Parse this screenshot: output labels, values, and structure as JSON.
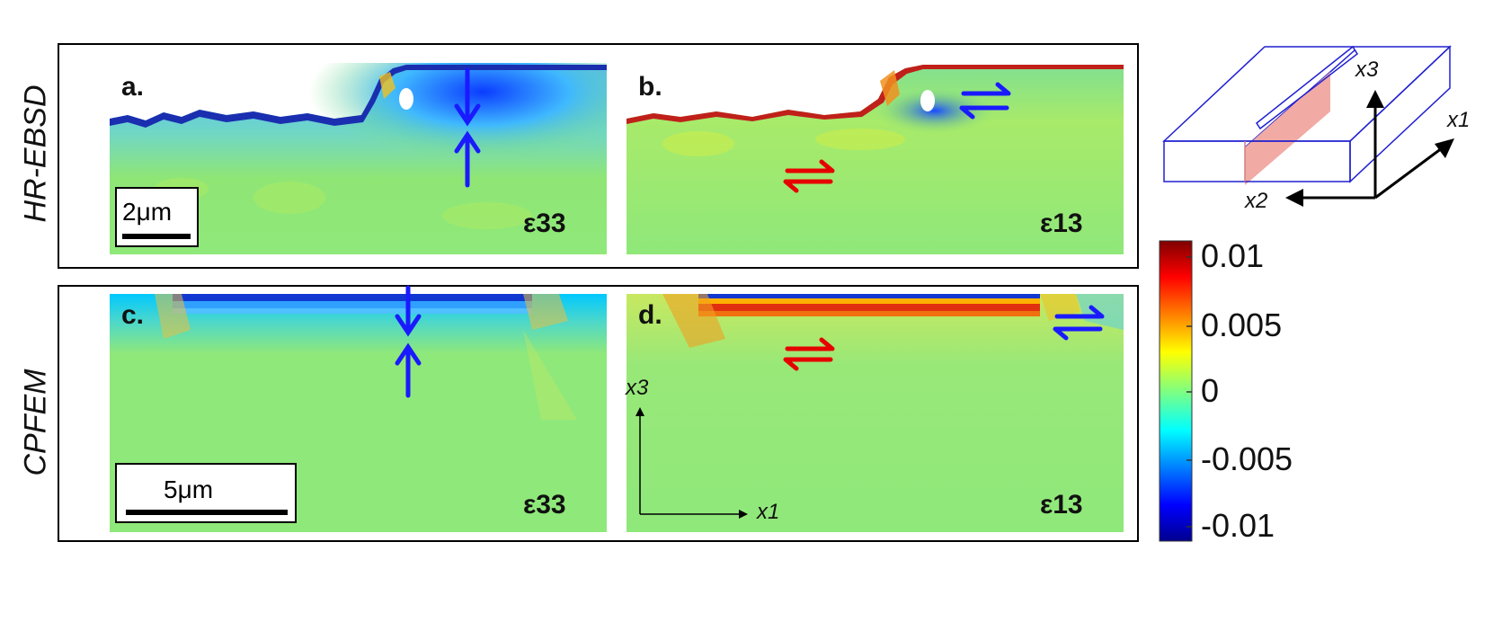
{
  "rows": [
    {
      "label": "HR-EBSD"
    },
    {
      "label": "CPFEM"
    }
  ],
  "panels": [
    {
      "id": "a.",
      "strain": "ε33"
    },
    {
      "id": "b.",
      "strain": "ε13"
    },
    {
      "id": "c.",
      "strain": "ε33"
    },
    {
      "id": "d.",
      "strain": "ε13"
    }
  ],
  "scalebars": {
    "top": "2μm",
    "bottom": "5μm"
  },
  "axes_inset": {
    "x": "x1",
    "z": "x3"
  },
  "schematic": {
    "x1": "x1",
    "x2": "x2",
    "x3": "x3"
  },
  "colorbar": {
    "ticks": [
      "0.01",
      "0.005",
      "0",
      "-0.005",
      "-0.01"
    ],
    "colors": [
      "#7f0000",
      "#ff0000",
      "#ffff00",
      "#00ffff",
      "#0000ff",
      "#00008f"
    ]
  },
  "arrow_colors": {
    "compression": "#1a1aff",
    "shear_red": "#e60000",
    "shear_blue": "#1a1aff"
  }
}
